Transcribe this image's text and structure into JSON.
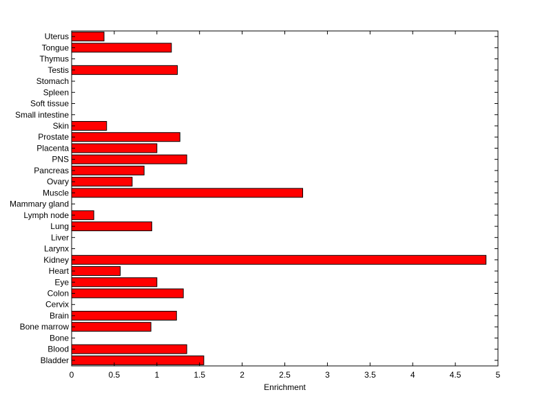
{
  "chart_data": {
    "type": "bar",
    "orientation": "horizontal",
    "title": "",
    "xlabel": "Enrichment",
    "ylabel": "",
    "xlim": [
      0,
      5
    ],
    "xticks": [
      "0",
      "0.5",
      "1",
      "1.5",
      "2",
      "2.5",
      "3",
      "3.5",
      "4",
      "4.5",
      "5"
    ],
    "grid": false,
    "bar_color": "#ff0000",
    "edge_color": "#000000",
    "categories": [
      "Bladder",
      "Blood",
      "Bone",
      "Bone marrow",
      "Brain",
      "Cervix",
      "Colon",
      "Eye",
      "Heart",
      "Kidney",
      "Larynx",
      "Liver",
      "Lung",
      "Lymph node",
      "Mammary gland",
      "Muscle",
      "Ovary",
      "Pancreas",
      "PNS",
      "Placenta",
      "Prostate",
      "Skin",
      "Small intestine",
      "Soft tissue",
      "Spleen",
      "Stomach",
      "Testis",
      "Thymus",
      "Tongue",
      "Uterus"
    ],
    "values": [
      1.55,
      1.35,
      0,
      0.93,
      1.23,
      0,
      1.31,
      1.0,
      0.57,
      4.86,
      0,
      0,
      0.94,
      0.26,
      0,
      2.71,
      0.71,
      0.85,
      1.35,
      1.0,
      1.27,
      0.41,
      0,
      0,
      0,
      0,
      1.24,
      0,
      1.17,
      0.38
    ]
  }
}
